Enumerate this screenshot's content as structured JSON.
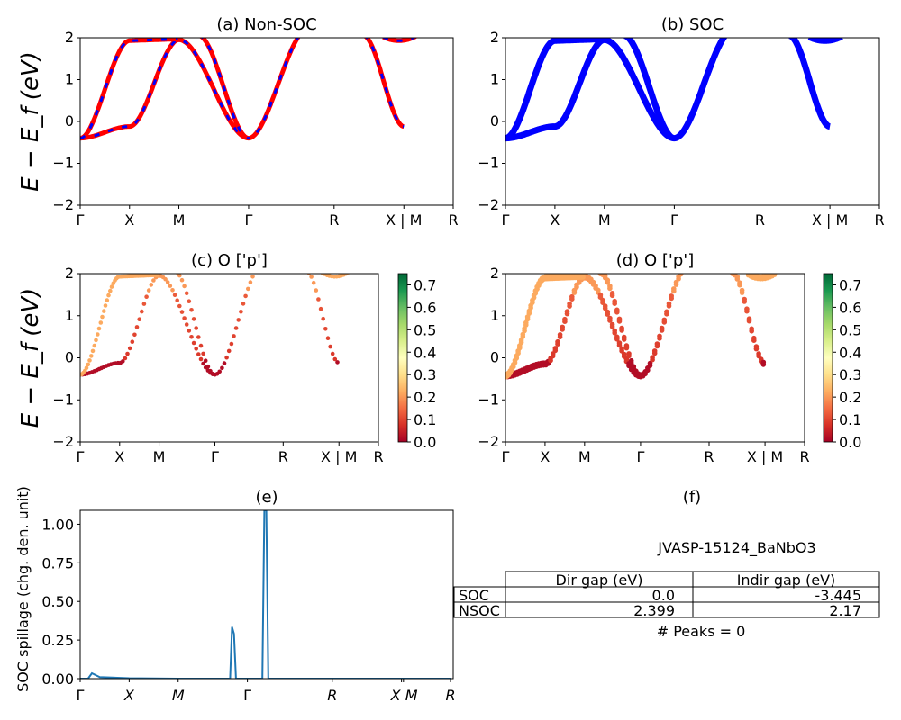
{
  "chart_data": [
    {
      "id": "a",
      "type": "line",
      "title": "(a) Non-SOC",
      "ylabel": "E − E_f (eV)",
      "ylim": [
        -2,
        2
      ],
      "yticks": [
        "−2",
        "−1",
        "0",
        "1",
        "2"
      ],
      "ytick_values": [
        -2,
        -1,
        0,
        1,
        2
      ],
      "xtick_labels": [
        "Γ",
        "X",
        "M",
        "Γ",
        "R",
        "X | M",
        "R"
      ],
      "xtick_positions": [
        0,
        0.5,
        1.0,
        1.707,
        2.573,
        3.28,
        3.78
      ],
      "series": [
        {
          "name": "Non-SOC",
          "style": "red solid with blue dashes",
          "colors": [
            "#ff0000",
            "#0000ff"
          ]
        }
      ]
    },
    {
      "id": "b",
      "type": "line",
      "title": "(b) SOC",
      "ylim": [
        -2,
        2
      ],
      "yticks": [
        "−2",
        "−1",
        "0",
        "1",
        "2"
      ],
      "ytick_values": [
        -2,
        -1,
        0,
        1,
        2
      ],
      "xtick_labels": [
        "Γ",
        "X",
        "M",
        "Γ",
        "R",
        "X | M",
        "R"
      ],
      "xtick_positions": [
        0,
        0.5,
        1.0,
        1.707,
        2.573,
        3.28,
        3.78
      ],
      "series": [
        {
          "name": "SOC",
          "colors": [
            "#0000ff"
          ]
        }
      ]
    },
    {
      "id": "c",
      "type": "scatter",
      "title": "(c)  O ['p']",
      "ylabel": "E − E_f (eV)",
      "ylim": [
        -2,
        2
      ],
      "yticks": [
        "−2",
        "−1",
        "0",
        "1",
        "2"
      ],
      "ytick_values": [
        -2,
        -1,
        0,
        1,
        2
      ],
      "xtick_labels": [
        "Γ",
        "X",
        "M",
        "Γ",
        "R",
        "X | M",
        "R"
      ],
      "xtick_positions": [
        0,
        0.5,
        1.0,
        1.707,
        2.573,
        3.28,
        3.78
      ],
      "colorbar": {
        "cmap": "RdYlGn",
        "range": [
          0,
          0.75
        ],
        "ticks": [
          "0.0",
          "0.1",
          "0.2",
          "0.3",
          "0.4",
          "0.5",
          "0.6",
          "0.7"
        ]
      }
    },
    {
      "id": "d",
      "type": "scatter",
      "title": "(d) O ['p']",
      "ylim": [
        -2,
        2
      ],
      "yticks": [
        "−2",
        "−1",
        "0",
        "1",
        "2"
      ],
      "ytick_values": [
        -2,
        -1,
        0,
        1,
        2
      ],
      "xtick_labels": [
        "Γ",
        "X",
        "M",
        "Γ",
        "R",
        "X | M",
        "R"
      ],
      "xtick_positions": [
        0,
        0.5,
        1.0,
        1.707,
        2.573,
        3.28,
        3.78
      ],
      "colorbar": {
        "cmap": "RdYlGn",
        "range": [
          0,
          0.75
        ],
        "ticks": [
          "0.0",
          "0.1",
          "0.2",
          "0.3",
          "0.4",
          "0.5",
          "0.6",
          "0.7"
        ]
      }
    },
    {
      "id": "e",
      "type": "line",
      "title": "(e)",
      "ylabel": "SOC spillage (chg. den. unit)",
      "ylim": [
        0,
        1.09
      ],
      "yticks": [
        "0.00",
        "0.25",
        "0.50",
        "0.75",
        "1.00"
      ],
      "ytick_values": [
        0,
        0.25,
        0.5,
        0.75,
        1.0
      ],
      "xtick_labels": [
        "Γ",
        "X",
        "M",
        "Γ",
        "R",
        "X",
        "M",
        "R"
      ],
      "xtick_positions": [
        0,
        0.5,
        1.0,
        1.707,
        2.573,
        3.28,
        3.3,
        3.78
      ],
      "color": "#1f77b4",
      "x": [
        0,
        0.08,
        0.12,
        0.2,
        0.5,
        1.0,
        1.5,
        1.53,
        1.55,
        1.57,
        1.59,
        1.6,
        1.7,
        1.86,
        1.88,
        1.9,
        1.92,
        2.2,
        3.0,
        3.78
      ],
      "y": [
        0.0,
        0.0,
        0.035,
        0.01,
        0.003,
        0.0,
        0.0,
        0.0,
        0.335,
        0.29,
        0.0,
        0.0,
        0.0,
        0.0,
        1.09,
        1.09,
        0.0,
        0.0,
        0.0,
        0.0
      ]
    },
    {
      "id": "f",
      "type": "table",
      "title": "(f)",
      "subtitle": "JVASP-15124_BaNbO3",
      "columns": [
        "Dir gap (eV)",
        "Indir gap (eV)"
      ],
      "rows": [
        {
          "label": "SOC",
          "values": [
            "0.0",
            "-3.445"
          ]
        },
        {
          "label": "NSOC",
          "values": [
            "2.399",
            "2.17"
          ]
        }
      ],
      "footer": "# Peaks = 0"
    }
  ]
}
